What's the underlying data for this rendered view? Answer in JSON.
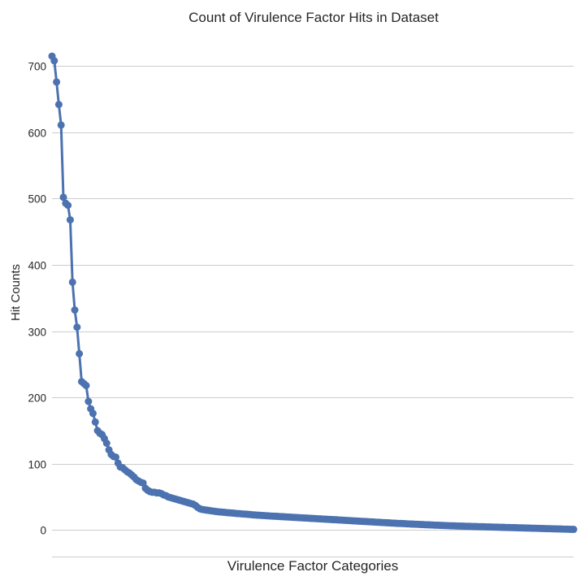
{
  "chart_data": {
    "type": "line",
    "title": "Count of Virulence Factor Hits in Dataset",
    "xlabel": "Virulence Factor Categories",
    "ylabel": "Hit Counts",
    "ylim": [
      -40,
      720
    ],
    "yticks": [
      0,
      100,
      200,
      300,
      400,
      500,
      600,
      700
    ],
    "grid": true,
    "x_tick_labels_shown": false,
    "series": [
      {
        "color": "#4c72b0",
        "marker": "circle",
        "values": [
          715,
          708,
          676,
          642,
          611,
          502,
          493,
          490,
          468,
          374,
          332,
          306,
          266,
          224,
          221,
          218,
          194,
          183,
          176,
          163,
          150,
          146,
          144,
          138,
          131,
          121,
          114,
          111,
          110,
          101,
          95,
          94,
          91,
          88,
          86,
          83,
          80,
          76,
          74,
          72,
          71,
          63,
          60,
          58,
          57,
          57,
          56,
          56,
          55,
          53,
          52,
          50,
          49,
          48,
          47,
          46,
          45,
          44,
          43,
          42,
          41,
          40,
          39,
          37,
          34,
          32,
          31,
          30.5,
          30,
          29.5,
          29,
          28.5,
          28,
          27.5,
          27.2,
          27,
          26.6,
          26.2,
          26,
          25.7,
          25.4,
          25,
          24.8,
          24.5,
          24.2,
          24,
          23.7,
          23.4,
          23,
          22.8,
          22.5,
          22.3,
          22.1,
          21.9,
          21.6,
          21.4,
          21.2,
          21,
          20.8,
          20.6,
          20.4,
          20.2,
          20,
          19.8,
          19.6,
          19.4,
          19.2,
          19,
          18.8,
          18.6,
          18.4,
          18.2,
          18,
          17.8,
          17.6,
          17.4,
          17.2,
          17,
          16.8,
          16.6,
          16.4,
          16.2,
          16,
          15.8,
          15.6,
          15.4,
          15.2,
          15,
          14.8,
          14.6,
          14.4,
          14.2,
          14,
          13.8,
          13.6,
          13.4,
          13.2,
          13,
          12.8,
          12.6,
          12.4,
          12.2,
          12,
          11.8,
          11.6,
          11.4,
          11.2,
          11,
          10.8,
          10.6,
          10.4,
          10.2,
          10,
          9.9,
          9.8,
          9.6,
          9.4,
          9.2,
          9,
          8.9,
          8.8,
          8.6,
          8.4,
          8.2,
          8,
          7.9,
          7.8,
          7.6,
          7.4,
          7.3,
          7.2,
          7,
          6.9,
          6.8,
          6.6,
          6.5,
          6.4,
          6.2,
          6.1,
          6,
          5.9,
          5.8,
          5.7,
          5.6,
          5.5,
          5.4,
          5.3,
          5.2,
          5.1,
          5,
          4.9,
          4.8,
          4.7,
          4.6,
          4.5,
          4.4,
          4.3,
          4.2,
          4.1,
          4,
          3.9,
          3.8,
          3.7,
          3.6,
          3.5,
          3.4,
          3.3,
          3.2,
          3.1,
          3,
          2.9,
          2.8,
          2.7,
          2.6,
          2.5,
          2.4,
          2.3,
          2.2,
          2.1,
          2,
          1.9,
          1.8,
          1.7,
          1.6,
          1.5,
          1.4,
          1.3,
          1.2,
          1.1,
          1
        ]
      }
    ]
  }
}
